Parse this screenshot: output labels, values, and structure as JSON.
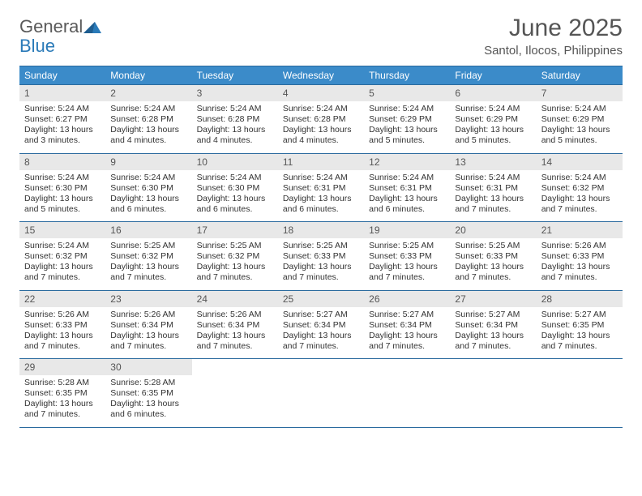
{
  "colors": {
    "header_bg": "#3b8bc9",
    "header_border": "#2a6a9e",
    "daynum_bg": "#e8e8e8",
    "text": "#333333",
    "muted": "#555555",
    "logo_gray": "#5a5a5a",
    "logo_blue": "#2a7ab8",
    "page_bg": "#ffffff"
  },
  "typography": {
    "base_family": "Arial, Helvetica, sans-serif",
    "month_title_pt": 30,
    "location_pt": 15,
    "dayheader_pt": 12,
    "daynum_pt": 12,
    "body_pt": 10.5
  },
  "logo": {
    "line1": "General",
    "line2": "Blue",
    "icon_name": "triangle-icon",
    "icon_color": "#2a7ab8"
  },
  "title": {
    "month": "June 2025",
    "location": "Santol, Ilocos, Philippines"
  },
  "dayheaders": [
    "Sunday",
    "Monday",
    "Tuesday",
    "Wednesday",
    "Thursday",
    "Friday",
    "Saturday"
  ],
  "weeks": [
    [
      {
        "n": "1",
        "sunrise": "Sunrise: 5:24 AM",
        "sunset": "Sunset: 6:27 PM",
        "daylight": "Daylight: 13 hours and 3 minutes."
      },
      {
        "n": "2",
        "sunrise": "Sunrise: 5:24 AM",
        "sunset": "Sunset: 6:28 PM",
        "daylight": "Daylight: 13 hours and 4 minutes."
      },
      {
        "n": "3",
        "sunrise": "Sunrise: 5:24 AM",
        "sunset": "Sunset: 6:28 PM",
        "daylight": "Daylight: 13 hours and 4 minutes."
      },
      {
        "n": "4",
        "sunrise": "Sunrise: 5:24 AM",
        "sunset": "Sunset: 6:28 PM",
        "daylight": "Daylight: 13 hours and 4 minutes."
      },
      {
        "n": "5",
        "sunrise": "Sunrise: 5:24 AM",
        "sunset": "Sunset: 6:29 PM",
        "daylight": "Daylight: 13 hours and 5 minutes."
      },
      {
        "n": "6",
        "sunrise": "Sunrise: 5:24 AM",
        "sunset": "Sunset: 6:29 PM",
        "daylight": "Daylight: 13 hours and 5 minutes."
      },
      {
        "n": "7",
        "sunrise": "Sunrise: 5:24 AM",
        "sunset": "Sunset: 6:29 PM",
        "daylight": "Daylight: 13 hours and 5 minutes."
      }
    ],
    [
      {
        "n": "8",
        "sunrise": "Sunrise: 5:24 AM",
        "sunset": "Sunset: 6:30 PM",
        "daylight": "Daylight: 13 hours and 5 minutes."
      },
      {
        "n": "9",
        "sunrise": "Sunrise: 5:24 AM",
        "sunset": "Sunset: 6:30 PM",
        "daylight": "Daylight: 13 hours and 6 minutes."
      },
      {
        "n": "10",
        "sunrise": "Sunrise: 5:24 AM",
        "sunset": "Sunset: 6:30 PM",
        "daylight": "Daylight: 13 hours and 6 minutes."
      },
      {
        "n": "11",
        "sunrise": "Sunrise: 5:24 AM",
        "sunset": "Sunset: 6:31 PM",
        "daylight": "Daylight: 13 hours and 6 minutes."
      },
      {
        "n": "12",
        "sunrise": "Sunrise: 5:24 AM",
        "sunset": "Sunset: 6:31 PM",
        "daylight": "Daylight: 13 hours and 6 minutes."
      },
      {
        "n": "13",
        "sunrise": "Sunrise: 5:24 AM",
        "sunset": "Sunset: 6:31 PM",
        "daylight": "Daylight: 13 hours and 7 minutes."
      },
      {
        "n": "14",
        "sunrise": "Sunrise: 5:24 AM",
        "sunset": "Sunset: 6:32 PM",
        "daylight": "Daylight: 13 hours and 7 minutes."
      }
    ],
    [
      {
        "n": "15",
        "sunrise": "Sunrise: 5:24 AM",
        "sunset": "Sunset: 6:32 PM",
        "daylight": "Daylight: 13 hours and 7 minutes."
      },
      {
        "n": "16",
        "sunrise": "Sunrise: 5:25 AM",
        "sunset": "Sunset: 6:32 PM",
        "daylight": "Daylight: 13 hours and 7 minutes."
      },
      {
        "n": "17",
        "sunrise": "Sunrise: 5:25 AM",
        "sunset": "Sunset: 6:32 PM",
        "daylight": "Daylight: 13 hours and 7 minutes."
      },
      {
        "n": "18",
        "sunrise": "Sunrise: 5:25 AM",
        "sunset": "Sunset: 6:33 PM",
        "daylight": "Daylight: 13 hours and 7 minutes."
      },
      {
        "n": "19",
        "sunrise": "Sunrise: 5:25 AM",
        "sunset": "Sunset: 6:33 PM",
        "daylight": "Daylight: 13 hours and 7 minutes."
      },
      {
        "n": "20",
        "sunrise": "Sunrise: 5:25 AM",
        "sunset": "Sunset: 6:33 PM",
        "daylight": "Daylight: 13 hours and 7 minutes."
      },
      {
        "n": "21",
        "sunrise": "Sunrise: 5:26 AM",
        "sunset": "Sunset: 6:33 PM",
        "daylight": "Daylight: 13 hours and 7 minutes."
      }
    ],
    [
      {
        "n": "22",
        "sunrise": "Sunrise: 5:26 AM",
        "sunset": "Sunset: 6:33 PM",
        "daylight": "Daylight: 13 hours and 7 minutes."
      },
      {
        "n": "23",
        "sunrise": "Sunrise: 5:26 AM",
        "sunset": "Sunset: 6:34 PM",
        "daylight": "Daylight: 13 hours and 7 minutes."
      },
      {
        "n": "24",
        "sunrise": "Sunrise: 5:26 AM",
        "sunset": "Sunset: 6:34 PM",
        "daylight": "Daylight: 13 hours and 7 minutes."
      },
      {
        "n": "25",
        "sunrise": "Sunrise: 5:27 AM",
        "sunset": "Sunset: 6:34 PM",
        "daylight": "Daylight: 13 hours and 7 minutes."
      },
      {
        "n": "26",
        "sunrise": "Sunrise: 5:27 AM",
        "sunset": "Sunset: 6:34 PM",
        "daylight": "Daylight: 13 hours and 7 minutes."
      },
      {
        "n": "27",
        "sunrise": "Sunrise: 5:27 AM",
        "sunset": "Sunset: 6:34 PM",
        "daylight": "Daylight: 13 hours and 7 minutes."
      },
      {
        "n": "28",
        "sunrise": "Sunrise: 5:27 AM",
        "sunset": "Sunset: 6:35 PM",
        "daylight": "Daylight: 13 hours and 7 minutes."
      }
    ],
    [
      {
        "n": "29",
        "sunrise": "Sunrise: 5:28 AM",
        "sunset": "Sunset: 6:35 PM",
        "daylight": "Daylight: 13 hours and 7 minutes."
      },
      {
        "n": "30",
        "sunrise": "Sunrise: 5:28 AM",
        "sunset": "Sunset: 6:35 PM",
        "daylight": "Daylight: 13 hours and 6 minutes."
      },
      {
        "empty": true
      },
      {
        "empty": true
      },
      {
        "empty": true
      },
      {
        "empty": true
      },
      {
        "empty": true
      }
    ]
  ]
}
